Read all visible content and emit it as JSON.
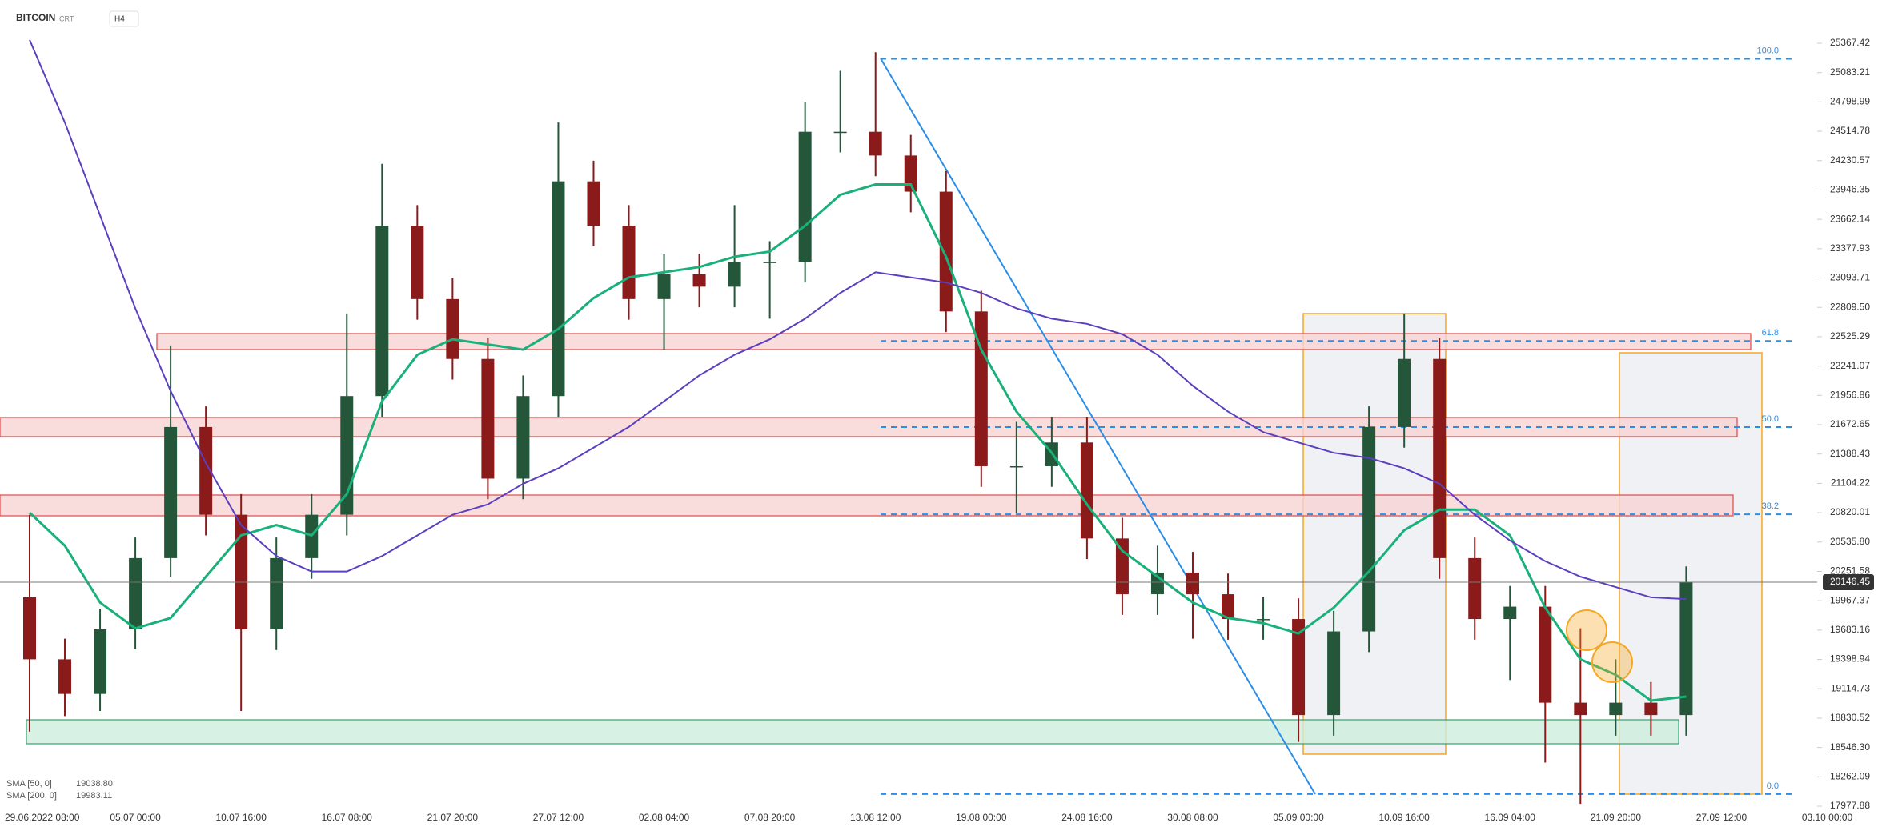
{
  "chart_data": {
    "type": "candlestick",
    "title": "BITCOIN",
    "subtitle": "CRT",
    "timeframe": "H4",
    "categories": [
      "29.06.2022 08:00",
      null,
      null,
      "05.07 00:00",
      null,
      null,
      "10.07 16:00",
      null,
      null,
      "16.07 08:00",
      null,
      null,
      "21.07 20:00",
      null,
      null,
      "27.07 12:00",
      null,
      null,
      "02.08 04:00",
      null,
      null,
      "07.08 20:00",
      null,
      null,
      "13.08 12:00",
      null,
      null,
      "19.08 00:00",
      null,
      null,
      "24.08 16:00",
      null,
      null,
      "30.08 08:00",
      null,
      null,
      "05.09 00:00",
      null,
      null,
      "10.09 16:00",
      null,
      null,
      "16.09 04:00",
      null,
      null,
      "21.09 20:00",
      null,
      null,
      "27.09 12:00",
      null,
      null,
      "03.10 00:00"
    ],
    "open": [
      20000,
      19400,
      19065,
      19690,
      20380,
      21650,
      20800,
      19690,
      20380,
      20800,
      21950,
      23600,
      22890,
      22310,
      21150,
      21950,
      24030,
      23600,
      22890,
      23130,
      23010,
      23250,
      23250,
      24510,
      24510,
      24280,
      23930,
      22770,
      21270,
      21270,
      21500,
      20570,
      20030,
      20240,
      20030,
      19790,
      19790,
      18860,
      19670,
      21650,
      22310,
      20380,
      19790,
      19910,
      18980,
      18860,
      18980,
      18860,
      null,
      null,
      null,
      null
    ],
    "high": [
      20800,
      19600,
      19890,
      20580,
      22440,
      21850,
      21000,
      20580,
      21000,
      22750,
      24200,
      23800,
      23090,
      22510,
      22150,
      24600,
      24230,
      23800,
      23330,
      23330,
      23800,
      23450,
      24800,
      25100,
      25280,
      24480,
      24130,
      22970,
      21700,
      21750,
      21750,
      20770,
      20500,
      20440,
      20230,
      20000,
      19990,
      19870,
      21850,
      22750,
      22510,
      20580,
      20110,
      20110,
      19700,
      19400,
      19180,
      20300,
      null,
      null,
      null,
      null
    ],
    "low": [
      18700,
      18850,
      18900,
      19500,
      20200,
      20600,
      18900,
      19490,
      20180,
      20600,
      21750,
      22690,
      22110,
      20950,
      20950,
      21750,
      23400,
      22690,
      22400,
      22810,
      22810,
      22700,
      23050,
      24310,
      24080,
      23730,
      22570,
      21070,
      20820,
      21070,
      20370,
      19830,
      19830,
      19600,
      19590,
      19590,
      18600,
      18660,
      19470,
      21450,
      20180,
      19590,
      19200,
      18400,
      18000,
      18660,
      18660,
      18660,
      null,
      null,
      null,
      null
    ],
    "close": [
      19400,
      19065,
      19690,
      20380,
      21650,
      20800,
      19690,
      20380,
      20800,
      21950,
      23600,
      22890,
      22310,
      21150,
      21950,
      24030,
      23600,
      22890,
      23130,
      23010,
      23250,
      23250,
      24510,
      24510,
      24280,
      23930,
      22770,
      21270,
      21270,
      21500,
      20570,
      20030,
      20240,
      20030,
      19790,
      19790,
      18860,
      19670,
      21650,
      22310,
      20380,
      19790,
      19910,
      18980,
      18860,
      18980,
      18860,
      20146.45,
      null,
      null,
      null,
      null
    ],
    "up_color": "#24563a",
    "down_color": "#8b1a1a",
    "series": [
      {
        "name": "SMA [50, 0]",
        "last_label": "19038.80",
        "color": "#19b07a",
        "values": [
          20820,
          20500,
          19950,
          19700,
          19800,
          20200,
          20600,
          20700,
          20600,
          21000,
          21900,
          22350,
          22500,
          22450,
          22400,
          22600,
          22900,
          23100,
          23150,
          23200,
          23300,
          23350,
          23600,
          23900,
          24000,
          24000,
          23300,
          22400,
          21800,
          21400,
          20900,
          20450,
          20200,
          19950,
          19800,
          19750,
          19650,
          19900,
          20250,
          20650,
          20850,
          20850,
          20600,
          19900,
          19400,
          19250,
          19000,
          19038.8,
          null,
          null,
          null,
          null
        ]
      },
      {
        "name": "SMA [200, 0]",
        "last_label": "19983.11",
        "color": "#5b3fbf",
        "values": [
          25400,
          24600,
          23700,
          22800,
          22000,
          21300,
          20700,
          20400,
          20250,
          20250,
          20400,
          20600,
          20800,
          20900,
          21100,
          21250,
          21450,
          21650,
          21900,
          22150,
          22350,
          22500,
          22700,
          22950,
          23150,
          23100,
          23050,
          22950,
          22800,
          22700,
          22650,
          22550,
          22350,
          22050,
          21800,
          21600,
          21500,
          21400,
          21350,
          21250,
          21100,
          20800,
          20550,
          20350,
          20200,
          20100,
          20000,
          19983.11,
          null,
          null,
          null,
          null
        ]
      }
    ],
    "fib_levels": [
      {
        "value": 100,
        "label": "100.0",
        "price": 25216
      },
      {
        "value": 61.8,
        "label": "61.8",
        "price": 22484
      },
      {
        "value": 50,
        "label": "50.0",
        "price": 21649
      },
      {
        "value": 38.2,
        "label": "38.2",
        "price": 20804
      },
      {
        "value": 0,
        "label": "0.0",
        "price": 18095
      }
    ],
    "ylim": [
      17977.88,
      25367.42
    ],
    "yticks": [
      25367.42,
      25083.21,
      24798.99,
      24514.78,
      24230.57,
      23946.35,
      23662.14,
      23377.93,
      23093.71,
      {
        "value": 22809.5,
        "label": "22809.50"
      },
      22525.29,
      22241.07,
      21956.86,
      21672.65,
      21388.43,
      21104.22,
      20820.01,
      {
        "value": 20535.8,
        "label": "20535.80"
      },
      20251.58,
      19967.37,
      19683.16,
      19398.94,
      19114.73,
      18830.52,
      {
        "value": 18546.3,
        "label": "18546.30"
      },
      18262.09,
      17977.88
    ],
    "grid": false
  }
}
